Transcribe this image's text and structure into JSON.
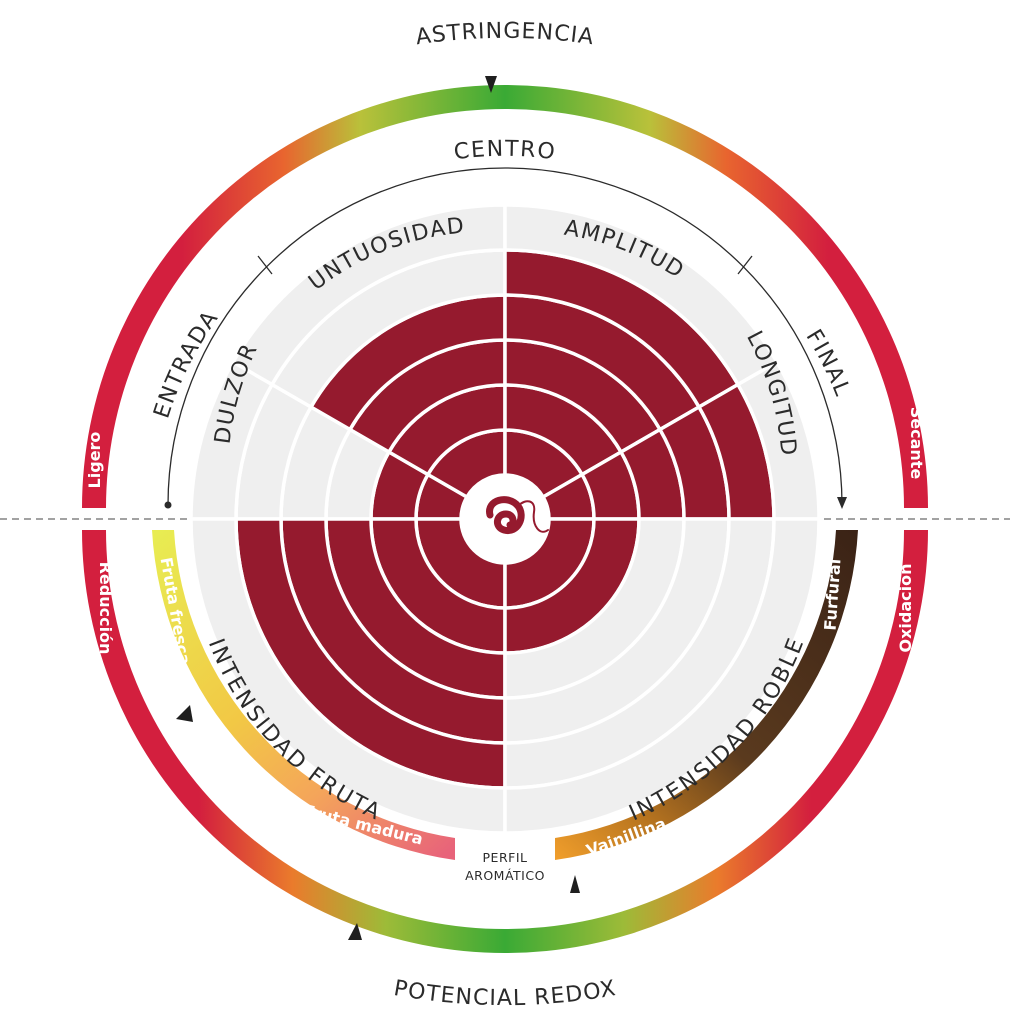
{
  "diagram": {
    "top_title": "ASTRINGENCIA",
    "bottom_title": "POTENCIAL REDOX",
    "mouth_arc": {
      "start": "ENTRADA",
      "center": "CENTRO",
      "end": "FINAL"
    },
    "outer_band": {
      "top_left": "Ligero",
      "top_right": "Secante",
      "bottom_left": "Reducción",
      "bottom_right": "Oxidación"
    },
    "inner_bands": {
      "fruit_fresh": "Fruta fresca",
      "fruit_ripe": "Fruta madura",
      "oak_furfural": "Furfural",
      "oak_vanillin": "Vainillina"
    },
    "aromatic_profile": [
      "PERFIL",
      "AROMÁTICO"
    ],
    "sectors": [
      {
        "name": "DULZOR",
        "level": 2
      },
      {
        "name": "UNTUOSIDAD",
        "level": 4
      },
      {
        "name": "AMPLITUD",
        "level": 5
      },
      {
        "name": "LONGITUD",
        "level": 5
      },
      {
        "name": "INTENSIDAD FRUTA",
        "level": 5
      },
      {
        "name": "INTENSIDAD ROBLE",
        "level": 2
      }
    ],
    "scale_max": 6,
    "colors": {
      "wine": "#951a2e",
      "empty": "#efefef",
      "band_red": "#d31f3e",
      "band_green": "#3aaa35",
      "band_yellow": "#f0b73a",
      "oak_brown": "#3b2316",
      "fruit_yellow": "#e8e54a",
      "fruit_pink": "#e8637a"
    }
  }
}
